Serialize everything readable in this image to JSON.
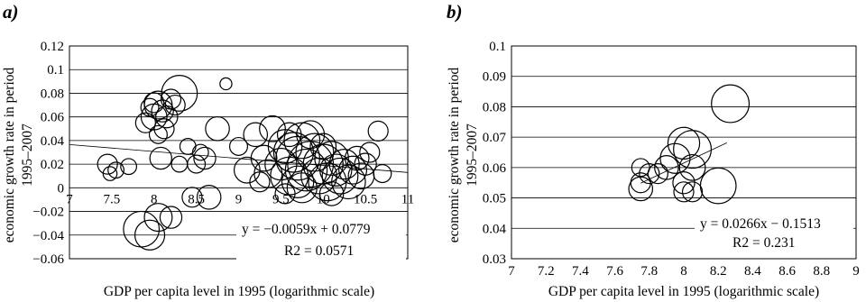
{
  "chart_data": [
    {
      "panel_label": "a)",
      "type": "scatter",
      "marker": "bubble (open circle)",
      "xlabel": "GDP per capita level in 1995 (logarithmic scale)",
      "ylabel_line1": "economic growth rate in period",
      "ylabel_line2": "1995–2007",
      "xlim": [
        7,
        11
      ],
      "ylim": [
        -0.06,
        0.12
      ],
      "xticks": [
        "7",
        "7.5",
        "8",
        "8.5",
        "9",
        "9.5",
        "10",
        "10.5",
        "11"
      ],
      "yticks": [
        "0.12",
        "0.1",
        "0.08",
        "0.06",
        "0.04",
        "0.02",
        "0",
        "−0.02",
        "−0.04",
        "−0.06"
      ],
      "grid": "horizontal",
      "trendline": {
        "slope": -0.0059,
        "intercept": 0.0779
      },
      "equation": "y = −0.0059x + 0.0779",
      "r2": "R2 = 0.0571",
      "points": [
        [
          7.45,
          0.02,
          1.0
        ],
        [
          7.55,
          0.015,
          0.8
        ],
        [
          7.48,
          0.012,
          0.7
        ],
        [
          7.7,
          0.018,
          0.8
        ],
        [
          7.9,
          0.055,
          1.0
        ],
        [
          8.0,
          0.06,
          1.3
        ],
        [
          8.05,
          0.07,
          1.4
        ],
        [
          8.1,
          0.065,
          1.1
        ],
        [
          8.0,
          0.072,
          1.0
        ],
        [
          8.15,
          0.06,
          1.1
        ],
        [
          7.95,
          0.068,
          0.9
        ],
        [
          8.2,
          0.075,
          1.0
        ],
        [
          8.12,
          0.05,
          1.0
        ],
        [
          8.3,
          0.08,
          1.8
        ],
        [
          8.05,
          0.045,
          0.9
        ],
        [
          8.25,
          0.07,
          1.0
        ],
        [
          8.08,
          0.025,
          1.1
        ],
        [
          8.3,
          0.02,
          0.8
        ],
        [
          8.4,
          0.035,
          0.8
        ],
        [
          8.5,
          0.02,
          0.9
        ],
        [
          8.55,
          0.03,
          0.8
        ],
        [
          8.6,
          0.025,
          1.1
        ],
        [
          8.75,
          0.05,
          1.2
        ],
        [
          8.85,
          0.088,
          0.6
        ],
        [
          8.45,
          -0.008,
          1.0
        ],
        [
          8.65,
          -0.008,
          1.2
        ],
        [
          7.85,
          -0.035,
          1.8
        ],
        [
          7.95,
          -0.04,
          1.5
        ],
        [
          8.05,
          -0.025,
          1.4
        ],
        [
          8.2,
          -0.025,
          1.1
        ],
        [
          9.0,
          0.035,
          0.9
        ],
        [
          9.1,
          0.015,
          1.3
        ],
        [
          9.2,
          0.045,
          1.2
        ],
        [
          9.3,
          0.025,
          1.3
        ],
        [
          9.4,
          0.05,
          1.3
        ],
        [
          9.5,
          0.02,
          1.6
        ],
        [
          9.55,
          0.035,
          1.7
        ],
        [
          9.6,
          0.01,
          1.9
        ],
        [
          9.65,
          0.03,
          2.0
        ],
        [
          9.7,
          0.025,
          2.2
        ],
        [
          9.7,
          0.005,
          1.6
        ],
        [
          9.75,
          0.04,
          1.8
        ],
        [
          9.8,
          0.015,
          2.1
        ],
        [
          9.85,
          0.02,
          2.3
        ],
        [
          9.9,
          0.03,
          1.9
        ],
        [
          9.95,
          0.01,
          1.8
        ],
        [
          10.0,
          0.02,
          2.0
        ],
        [
          10.05,
          0.005,
          1.9
        ],
        [
          10.1,
          0.025,
          1.7
        ],
        [
          10.15,
          0.015,
          1.6
        ],
        [
          10.2,
          0.01,
          1.8
        ],
        [
          10.25,
          0.02,
          1.5
        ],
        [
          10.3,
          0.005,
          1.7
        ],
        [
          10.35,
          0.015,
          1.4
        ],
        [
          10.4,
          0.025,
          1.2
        ],
        [
          10.45,
          0.01,
          1.3
        ],
        [
          10.5,
          0.02,
          1.1
        ],
        [
          9.85,
          0.045,
          1.4
        ],
        [
          9.6,
          0.045,
          1.2
        ],
        [
          9.75,
          0.0,
          1.5
        ],
        [
          10.0,
          0.035,
          1.3
        ],
        [
          10.1,
          -0.005,
          1.2
        ],
        [
          9.55,
          -0.005,
          1.0
        ],
        [
          10.65,
          0.048,
          1.0
        ],
        [
          10.7,
          0.012,
          0.9
        ],
        [
          10.55,
          0.03,
          1.0
        ],
        [
          9.25,
          0.005,
          1.0
        ],
        [
          9.35,
          0.012,
          1.4
        ]
      ]
    },
    {
      "panel_label": "b)",
      "type": "scatter",
      "marker": "bubble (open circle)",
      "xlabel": "GDP per capita level in 1995 (logarithmic scale)",
      "ylabel_line1": "economic growth rate in period",
      "ylabel_line2": "1995–2007",
      "xlim": [
        7,
        9
      ],
      "ylim": [
        0.03,
        0.1
      ],
      "xticks": [
        "7",
        "7.2",
        "7.4",
        "7.6",
        "7.8",
        "8",
        "8.2",
        "8.4",
        "8.6",
        "8.8",
        "9"
      ],
      "yticks": [
        "0.1",
        "0.09",
        "0.08",
        "0.07",
        "0.06",
        "0.05",
        "0.04",
        "0.03"
      ],
      "grid": "horizontal",
      "trendline": {
        "slope": 0.0266,
        "intercept": -0.1513
      },
      "equation": "y = 0.0266x − 0.1513",
      "r2": "R2 = 0.231",
      "points": [
        [
          7.75,
          0.06,
          0.9
        ],
        [
          7.75,
          0.055,
          1.0
        ],
        [
          7.75,
          0.053,
          1.2
        ],
        [
          7.8,
          0.058,
          1.0
        ],
        [
          7.9,
          0.06,
          1.2
        ],
        [
          7.95,
          0.063,
          1.5
        ],
        [
          8.0,
          0.068,
          1.6
        ],
        [
          8.05,
          0.066,
          1.9
        ],
        [
          8.05,
          0.06,
          1.3
        ],
        [
          8.0,
          0.055,
          1.1
        ],
        [
          8.0,
          0.052,
          1.0
        ],
        [
          8.05,
          0.052,
          1.0
        ],
        [
          8.2,
          0.054,
          1.8
        ],
        [
          8.27,
          0.081,
          1.9
        ],
        [
          7.85,
          0.058,
          1.0
        ]
      ]
    }
  ]
}
